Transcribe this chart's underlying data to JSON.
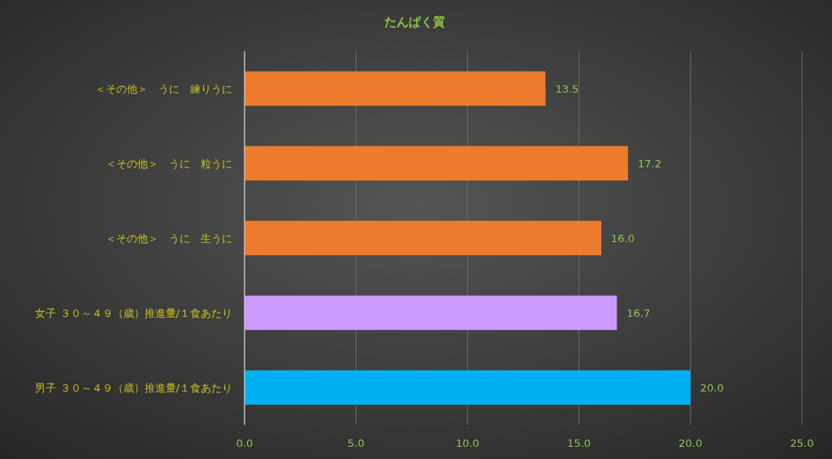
{
  "chart_data": {
    "type": "bar",
    "orientation": "horizontal",
    "title": "たんぱく質",
    "categories": [
      "＜その他＞　うに　練りうに",
      "＜その他＞　うに　粒うに",
      "＜その他＞　うに　生うに",
      "女子 ３０～４９（歳）推進量/１食あたり",
      "男子 ３０～４９（歳）推進量/１食あたり"
    ],
    "values": [
      13.5,
      17.2,
      16.0,
      16.7,
      20.0
    ],
    "colors": [
      "#ee7b2d",
      "#ee7b2d",
      "#ee7b2d",
      "#cc99ff",
      "#00b0f0"
    ],
    "value_labels": [
      "13.5",
      "17.2",
      "16.0",
      "16.7",
      "20.0"
    ],
    "xlim": [
      0,
      25
    ],
    "xticks": [
      {
        "value": 0,
        "label": "0.0"
      },
      {
        "value": 5,
        "label": "5.0"
      },
      {
        "value": 10,
        "label": "10.0"
      },
      {
        "value": 15,
        "label": "15.0"
      },
      {
        "value": 20,
        "label": "20.0"
      },
      {
        "value": 25,
        "label": "25.0"
      }
    ],
    "grid": "x"
  }
}
